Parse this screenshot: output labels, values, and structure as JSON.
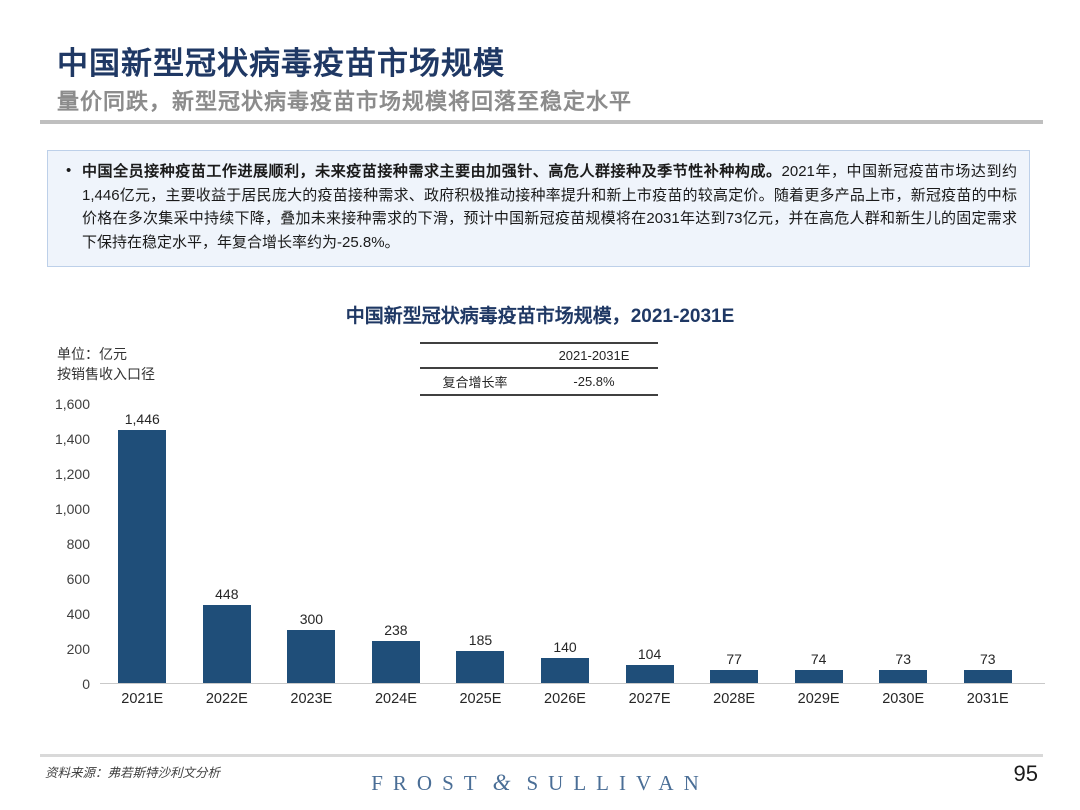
{
  "page": {
    "title": "中国新型冠状病毒疫苗市场规模",
    "subtitle": "量价同跌，新型冠状病毒疫苗市场规模将回落至稳定水平",
    "page_number": "95"
  },
  "infobox": {
    "bullet": "•",
    "bold_text": "中国全员接种疫苗工作进展顺利，未来疫苗接种需求主要由加强针、高危人群接种及季节性补种构成。",
    "body_text": "2021年，中国新冠疫苗市场达到约1,446亿元，主要收益于居民庞大的疫苗接种需求、政府积极推动接种率提升和新上市疫苗的较高定价。随着更多产品上市，新冠疫苗的中标价格在多次集采中持续下降，叠加未来接种需求的下滑，预计中国新冠疫苗规模将在2031年达到73亿元，并在高危人群和新生儿的固定需求下保持在稳定水平，年复合增长率约为-25.8%。"
  },
  "chart_data": {
    "type": "bar",
    "title": "中国新型冠状病毒疫苗市场规模，2021-2031E",
    "unit_label_line1": "单位：亿元",
    "unit_label_line2": "按销售收入口径",
    "categories": [
      "2021E",
      "2022E",
      "2023E",
      "2024E",
      "2025E",
      "2026E",
      "2027E",
      "2028E",
      "2029E",
      "2030E",
      "2031E"
    ],
    "values": [
      1446,
      448,
      300,
      238,
      185,
      140,
      104,
      77,
      74,
      73,
      73
    ],
    "value_labels": [
      "1,446",
      "448",
      "300",
      "238",
      "185",
      "140",
      "104",
      "77",
      "74",
      "73",
      "73"
    ],
    "ylabel": "亿元",
    "ylim": [
      0,
      1600
    ],
    "y_ticks": [
      "1,600",
      "1,400",
      "1,200",
      "1,000",
      "800",
      "600",
      "400",
      "200",
      "0"
    ],
    "grid": false,
    "legend": "none",
    "bar_color": "#1F4E79",
    "cagr_table": {
      "period_header": "2021-2031E",
      "row_label": "复合增长率",
      "row_value": "-25.8%"
    }
  },
  "footer": {
    "source": "资料来源：弗若斯特沙利文分析",
    "logo_left": "FROST",
    "logo_amp": "&",
    "logo_right": "SULLIVAN"
  },
  "colors": {
    "title_navy": "#1F3864",
    "subtitle_gray": "#8C8C8C",
    "divider_gray": "#BFBFBF",
    "infobox_bg": "#EFF4FB",
    "infobox_border": "#BDD0E9",
    "bar_navy": "#1F4E79",
    "table_line": "#404040",
    "axis_line": "#C9C9C9",
    "logo_blue": "#4A6E96"
  }
}
